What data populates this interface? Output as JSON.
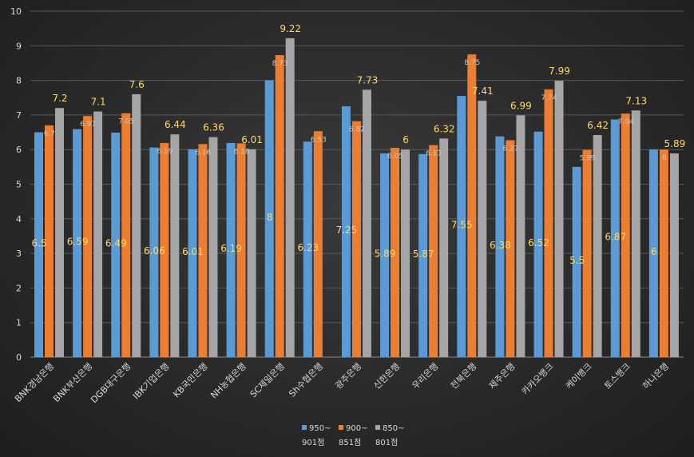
{
  "chart_data": {
    "type": "bar",
    "ylim": [
      0,
      10
    ],
    "yticks": [
      "0",
      "1",
      "2",
      "3",
      "4",
      "5",
      "6",
      "7",
      "8",
      "9",
      "10"
    ],
    "grid": true,
    "legend_position": "bottom",
    "categories": [
      "BNK경남은행",
      "BNK부산은행",
      "DGB대구은행",
      "IBK기업은행",
      "KB국민은행",
      "NH농협은행",
      "SC제일은행",
      "Sh수협은행",
      "광주은행",
      "신한은행",
      "우리은행",
      "전북은행",
      "제주은행",
      "카카오뱅크",
      "케이뱅크",
      "토스뱅크",
      "하나은행"
    ],
    "series": [
      {
        "name": "950~ 901점",
        "color": "#5b9bd5",
        "values": [
          6.5,
          6.59,
          6.49,
          6.06,
          6.01,
          6.19,
          8,
          6.23,
          7.25,
          5.89,
          5.87,
          7.55,
          6.38,
          6.52,
          5.5,
          6.87,
          6
        ],
        "labels": [
          "6.5",
          "6.59",
          "6.49",
          "6.06",
          "6.01",
          "6.19",
          "8",
          "6.23",
          "7.25",
          "5.89",
          "5.87",
          "7.55",
          "6.38",
          "6.52",
          "5.5",
          "6.87",
          "6"
        ]
      },
      {
        "name": "900~ 851점",
        "color": "#ed7d31",
        "values": [
          6.7,
          6.97,
          7.05,
          6.19,
          6.16,
          6.18,
          8.73,
          6.53,
          6.82,
          6.05,
          6.13,
          8.75,
          6.27,
          7.74,
          5.99,
          7.04,
          6
        ],
        "labels": [
          "6.7",
          "6.97",
          "7.05",
          "6.19",
          "6.16",
          "6.18",
          "8.73",
          "6.53",
          "6.82",
          "6.05",
          "6.13",
          "8.75",
          "6.27",
          "7.74",
          "5.99",
          "7.04",
          "6"
        ]
      },
      {
        "name": "850~ 801점",
        "color": "#a5a5a5",
        "values": [
          7.2,
          7.1,
          7.6,
          6.44,
          6.36,
          6.01,
          9.22,
          null,
          7.73,
          6,
          6.32,
          7.41,
          6.99,
          7.99,
          6.42,
          7.13,
          5.89
        ],
        "labels": [
          "7.2",
          "7.1",
          "7.6",
          "6.44",
          "6.36",
          "6.01",
          "9.22",
          "",
          "7.73",
          "6",
          "6.32",
          "7.41",
          "6.99",
          "7.99",
          "6.42",
          "7.13",
          "5.89"
        ]
      }
    ],
    "legend": [
      {
        "top": "950~",
        "bottom": "901점"
      },
      {
        "top": "900~",
        "bottom": "851점"
      },
      {
        "top": "850~",
        "bottom": "801점"
      }
    ]
  }
}
